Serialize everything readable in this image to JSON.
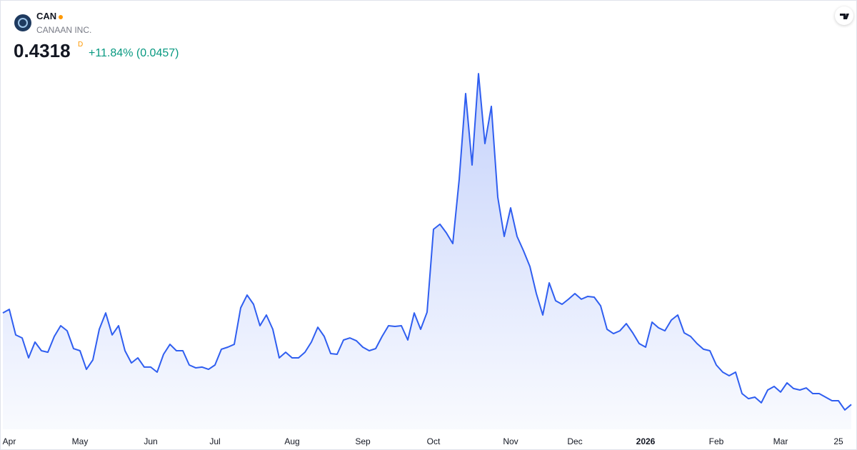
{
  "header": {
    "symbol": "CAN",
    "company": "CANAAN INC.",
    "price": "0.4318",
    "interval": "D",
    "change": "+11.84% (0.0457)"
  },
  "chart_data": {
    "type": "area",
    "color": "#2f5ef0",
    "ylim": [
      0.3,
      2.58
    ],
    "categories": [
      null,
      "Apr",
      null,
      null,
      null,
      null,
      null,
      null,
      null,
      null,
      null,
      null,
      "May",
      null,
      null,
      null,
      null,
      null,
      null,
      null,
      null,
      null,
      null,
      "Jun",
      null,
      null,
      null,
      null,
      null,
      null,
      null,
      null,
      null,
      "Jul",
      null,
      null,
      null,
      null,
      null,
      null,
      null,
      null,
      null,
      null,
      null,
      "Aug",
      null,
      null,
      null,
      null,
      null,
      null,
      null,
      null,
      null,
      null,
      "Sep",
      null,
      null,
      null,
      null,
      null,
      null,
      null,
      null,
      null,
      null,
      "Oct",
      null,
      null,
      null,
      null,
      null,
      null,
      null,
      null,
      null,
      null,
      null,
      "Nov",
      null,
      null,
      null,
      null,
      null,
      null,
      null,
      null,
      null,
      "Dec",
      null,
      null,
      null,
      null,
      null,
      null,
      null,
      null,
      null,
      null,
      "2026",
      null,
      null,
      null,
      null,
      null,
      null,
      null,
      null,
      null,
      null,
      "Feb",
      null,
      null,
      null,
      null,
      null,
      null,
      null,
      null,
      null,
      "Mar",
      null,
      null,
      null,
      null,
      null,
      null,
      null,
      null,
      "25",
      null,
      null
    ],
    "values": [
      0.919,
      0.938,
      0.802,
      0.786,
      0.68,
      0.764,
      0.718,
      0.71,
      0.794,
      0.851,
      0.824,
      0.729,
      0.718,
      0.619,
      0.669,
      0.832,
      0.919,
      0.802,
      0.851,
      0.718,
      0.653,
      0.68,
      0.631,
      0.631,
      0.604,
      0.699,
      0.752,
      0.718,
      0.718,
      0.642,
      0.627,
      0.631,
      0.619,
      0.642,
      0.726,
      0.737,
      0.752,
      0.946,
      1.014,
      0.965,
      0.851,
      0.908,
      0.832,
      0.68,
      0.71,
      0.68,
      0.68,
      0.71,
      0.764,
      0.843,
      0.794,
      0.703,
      0.699,
      0.775,
      0.786,
      0.771,
      0.737,
      0.718,
      0.729,
      0.794,
      0.851,
      0.847,
      0.851,
      0.775,
      0.919,
      0.832,
      0.923,
      1.364,
      1.391,
      1.345,
      1.288,
      1.63,
      2.086,
      1.706,
      2.192,
      1.82,
      2.018,
      1.535,
      1.326,
      1.478,
      1.326,
      1.25,
      1.166,
      1.022,
      0.908,
      1.079,
      0.984,
      0.965,
      0.992,
      1.022,
      0.992,
      1.007,
      1.003,
      0.957,
      0.832,
      0.809,
      0.824,
      0.862,
      0.813,
      0.756,
      0.737,
      0.87,
      0.84,
      0.824,
      0.881,
      0.908,
      0.813,
      0.794,
      0.756,
      0.726,
      0.718,
      0.642,
      0.604,
      0.585,
      0.604,
      0.49,
      0.463,
      0.471,
      0.441,
      0.509,
      0.528,
      0.498,
      0.547,
      0.517,
      0.509,
      0.52,
      0.49,
      0.49,
      0.471,
      0.452,
      0.452,
      0.403,
      0.4318
    ]
  }
}
